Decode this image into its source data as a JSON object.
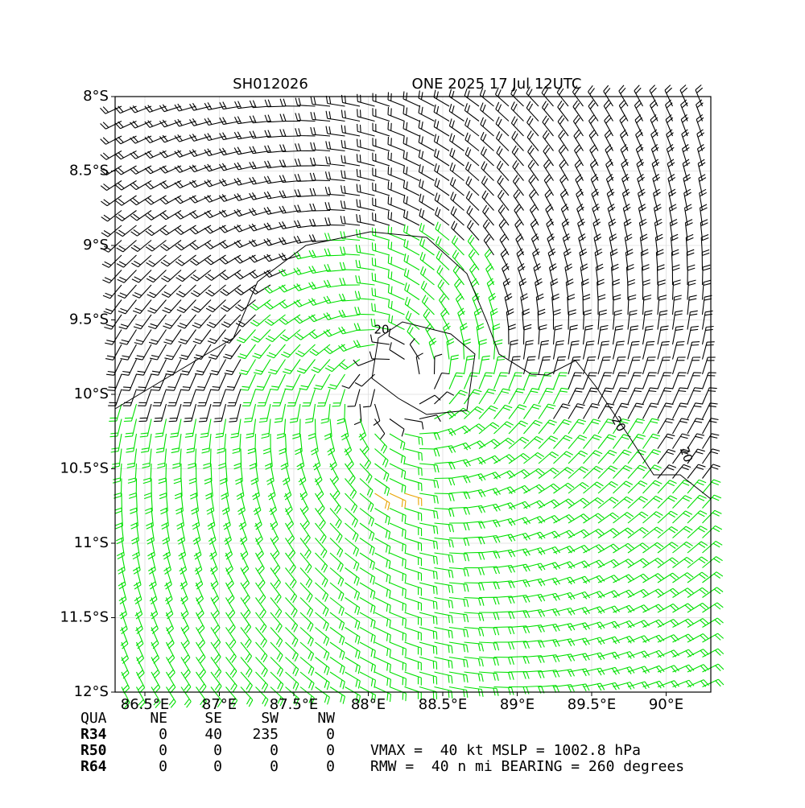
{
  "map": {
    "title_left": "SH012026",
    "title_right": "ONE 2025 17 Jul 12UTC",
    "latlim": [
      -12,
      -8
    ],
    "lonlim": [
      86.3,
      90.3
    ],
    "lat_ticks": [
      {
        "value": -8,
        "label": "8°S"
      },
      {
        "value": -8.5,
        "label": "8.5°S"
      },
      {
        "value": -9,
        "label": "9°S"
      },
      {
        "value": -9.5,
        "label": "9.5°S"
      },
      {
        "value": -10,
        "label": "10°S"
      },
      {
        "value": -10.5,
        "label": "10.5°S"
      },
      {
        "value": -11,
        "label": "11°S"
      },
      {
        "value": -11.5,
        "label": "11.5°S"
      },
      {
        "value": -12,
        "label": "12°S"
      }
    ],
    "lon_ticks": [
      {
        "value": 86.5,
        "label": "86.5°E"
      },
      {
        "value": 87,
        "label": "87°E"
      },
      {
        "value": 87.5,
        "label": "87.5°E"
      },
      {
        "value": 88,
        "label": "88°E"
      },
      {
        "value": 88.5,
        "label": "88.5°E"
      },
      {
        "value": 89,
        "label": "89°E"
      },
      {
        "value": 89.5,
        "label": "89.5°E"
      },
      {
        "value": 90,
        "label": "90°E"
      }
    ],
    "contour_labels": [
      "20",
      "20",
      "20"
    ]
  },
  "table": {
    "header": [
      "QUA",
      "NE",
      "SE",
      "SW",
      "NW"
    ],
    "rows": [
      [
        "R34",
        "0",
        "40",
        "235",
        "0"
      ],
      [
        "R50",
        "0",
        "0",
        "0",
        "0"
      ],
      [
        "R64",
        "0",
        "0",
        "0",
        "0"
      ]
    ]
  },
  "info": [
    "VMAX =  40 kt MSLP = 1002.8 hPa",
    "RMW =  40 n mi BEARING = 260 degrees"
  ]
}
